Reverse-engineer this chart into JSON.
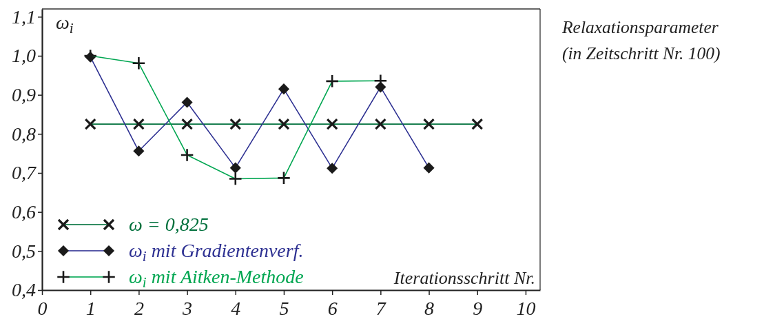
{
  "chart_data": {
    "type": "line",
    "title": "Relaxationsparameter\n(in Zeitschritt Nr. 100)",
    "xlabel": "Iterationsschritt Nr.",
    "ylabel": "ω$_{i}$",
    "x": [
      1,
      2,
      3,
      4,
      5,
      6,
      7,
      8,
      9
    ],
    "xlim": [
      0,
      10.3
    ],
    "xticks": [
      0,
      1,
      2,
      3,
      4,
      5,
      6,
      7,
      8,
      9,
      10
    ],
    "ylim": [
      0.4,
      1.12
    ],
    "yticks": [
      {
        "value": 0.4,
        "label": "0,4"
      },
      {
        "value": 0.5,
        "label": "0,5"
      },
      {
        "value": 0.6,
        "label": "0,6"
      },
      {
        "value": 0.7,
        "label": "0,7"
      },
      {
        "value": 0.8,
        "label": "0,8"
      },
      {
        "value": 0.9,
        "label": "0,9"
      },
      {
        "value": 1.0,
        "label": "1,0"
      },
      {
        "value": 1.1,
        "label": "1,1"
      }
    ],
    "legend": "bottom left",
    "series": [
      {
        "name": "ω = 0,825",
        "color": "#00703c",
        "marker": "x",
        "values": [
          0.825,
          0.825,
          0.825,
          0.825,
          0.825,
          0.825,
          0.825,
          0.825,
          0.825
        ]
      },
      {
        "name": "ω$_{i}$ mit Gradientenverf.",
        "color": "#2e3192",
        "marker": "diamond",
        "x": [
          1,
          2,
          3,
          4,
          5,
          6,
          7,
          8
        ],
        "values": [
          0.997,
          0.756,
          0.881,
          0.713,
          0.915,
          0.712,
          0.92,
          0.713
        ]
      },
      {
        "name": "ω$_{i}$ mit Aitken-Methode",
        "color": "#00a651",
        "marker": "cross",
        "x": [
          1,
          2,
          3,
          4,
          5,
          6,
          7
        ],
        "values": [
          1.0,
          0.981,
          0.746,
          0.685,
          0.687,
          0.935,
          0.936
        ]
      }
    ]
  }
}
